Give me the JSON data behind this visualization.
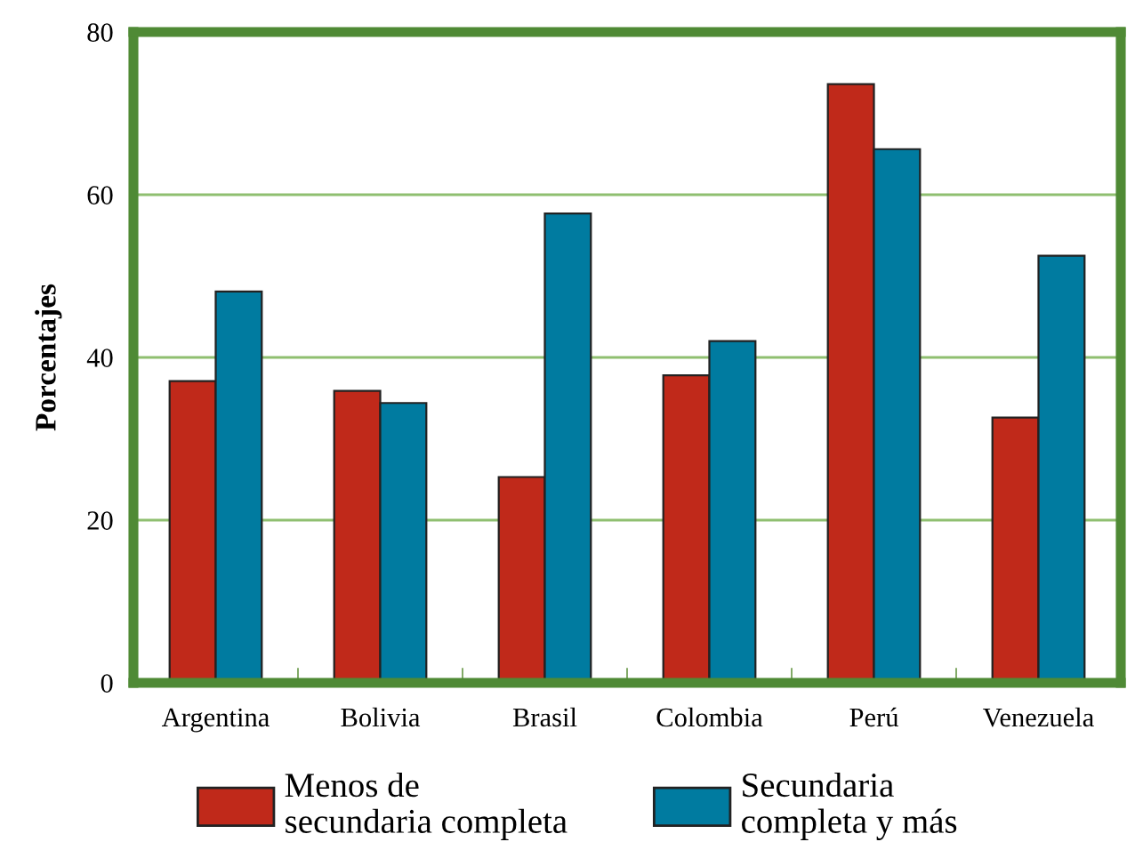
{
  "chart_data": {
    "type": "bar",
    "ylabel": "Porcentajes",
    "categories": [
      "Argentina",
      "Bolivia",
      "Brasil",
      "Colombia",
      "Perú",
      "Venezuela"
    ],
    "series": [
      {
        "name": "Menos de\nsecundaria completa",
        "color": "#c0291a",
        "values": [
          37.1,
          35.9,
          25.3,
          37.8,
          73.6,
          32.6
        ]
      },
      {
        "name": "Secundaria\ncompleta y más",
        "color": "#007ba0",
        "values": [
          48.1,
          34.4,
          57.7,
          42.0,
          65.6,
          52.5
        ]
      }
    ],
    "ylim": [
      0,
      80
    ],
    "yticks": [
      0,
      20,
      40,
      60,
      80
    ],
    "grid": "y",
    "legend": "bottom"
  }
}
